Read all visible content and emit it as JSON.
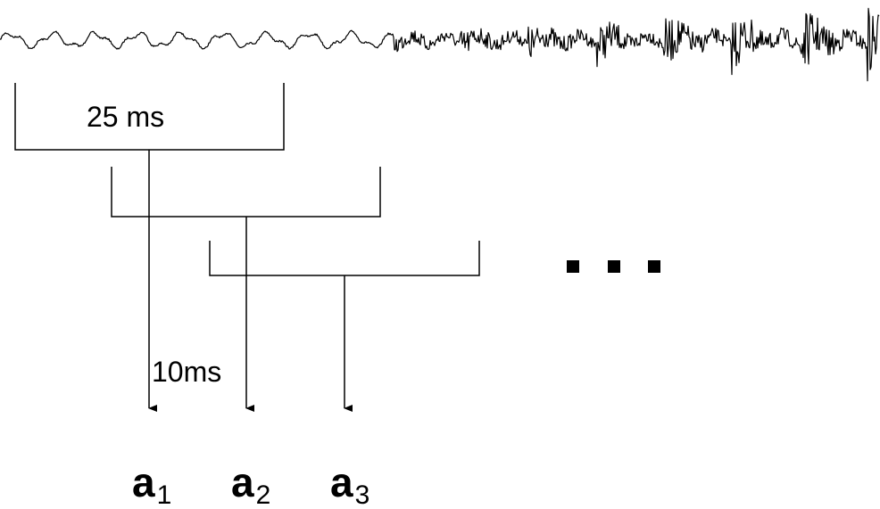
{
  "window_length_label": "25 ms",
  "frame_shift_label": "10ms",
  "ellipsis_icon": "ellipsis-dots",
  "outputs": [
    {
      "symbol": "a",
      "index": "1"
    },
    {
      "symbol": "a",
      "index": "2"
    },
    {
      "symbol": "a",
      "index": "3"
    }
  ],
  "colors": {
    "ink": "#000000",
    "background": "#ffffff"
  }
}
